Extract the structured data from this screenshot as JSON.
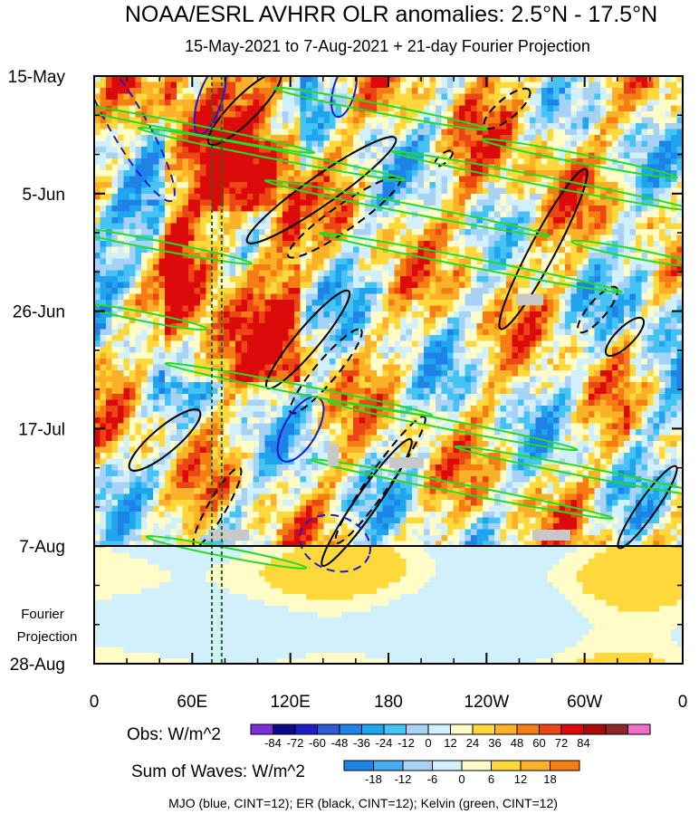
{
  "chart_data": {
    "type": "heatmap",
    "title": "NOAA/ESRL AVHRR OLR anomalies: 2.5°N - 17.5°N",
    "subtitle": "15-May-2021 to 7-Aug-2021 + 21-day Fourier Projection",
    "xlabel": "",
    "ylabel": "",
    "x_ticks": [
      "0",
      "60E",
      "120E",
      "180",
      "120W",
      "60W",
      "0"
    ],
    "x_tick_values": [
      0,
      60,
      120,
      180,
      240,
      300,
      360
    ],
    "y_ticks": [
      "15-May",
      "5-Jun",
      "26-Jun",
      "17-Jul",
      "7-Aug",
      "28-Aug"
    ],
    "y_tick_days": [
      0,
      21,
      42,
      63,
      84,
      105
    ],
    "xlim": [
      0,
      360
    ],
    "ylim_days": [
      0,
      105
    ],
    "observed_end_day": 84,
    "projection_label_line1": "Fourier",
    "projection_label_line2": "Projection",
    "reference_longitudes": [
      72,
      78
    ],
    "obs_colorbar": {
      "label": "Obs: W/m^2",
      "levels": [
        "-84",
        "-72",
        "-60",
        "-48",
        "-36",
        "-24",
        "-12",
        "0",
        "12",
        "24",
        "36",
        "48",
        "60",
        "72",
        "84"
      ],
      "colors": [
        "#7b2fd6",
        "#0c0b8c",
        "#1e1ec8",
        "#2d5ad8",
        "#1e82e6",
        "#1ea5ee",
        "#46c3f5",
        "#a7d2f5",
        "#d2f0fb",
        "#fffcc8",
        "#ffd93c",
        "#fbb128",
        "#f57d14",
        "#eb4614",
        "#dc0a0a",
        "#aa0a0a",
        "#8c2828",
        "#f06ec8"
      ]
    },
    "sum_colorbar": {
      "label": "Sum of Waves: W/m^2",
      "levels": [
        "-18",
        "-12",
        "-6",
        "0",
        "6",
        "12",
        "18"
      ],
      "colors": [
        "#1e82e6",
        "#46aaf0",
        "#a7d2f5",
        "#d2f0fb",
        "#fffcc8",
        "#ffd93c",
        "#fbb128",
        "#f57d14"
      ]
    },
    "footnote": "MJO (blue, CINT=12); ER (black, CINT=12); Kelvin (green, CINT=12)",
    "series": [
      {
        "name": "MJO",
        "color": "#1b1bcc"
      },
      {
        "name": "ER",
        "color": "#000000"
      },
      {
        "name": "Kelvin",
        "color": "#22dd22"
      }
    ]
  }
}
